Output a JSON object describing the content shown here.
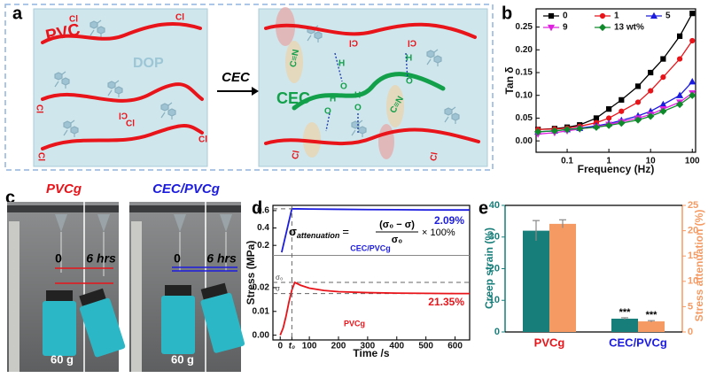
{
  "panel_labels": [
    "a",
    "b",
    "c",
    "d",
    "e"
  ],
  "schematic": {
    "left_polymer": "PVC",
    "plasticizer": "DOP",
    "left_chlorine": [
      "Cl",
      "Cl",
      "Cl",
      "Cl",
      "Cl",
      "Cl",
      "Cl"
    ],
    "arrow_label": "CEC",
    "right_polymer": "CEC",
    "nitrile": [
      "C≡N",
      "C≡N"
    ],
    "hydroxyl_o": [
      "O",
      "O",
      "O",
      "O"
    ],
    "hydroxyl_h": [
      "H",
      "H",
      "H",
      "H"
    ],
    "right_chlorine": [
      "Cl",
      "Cl",
      "Cl",
      "Cl"
    ]
  },
  "photos": {
    "left_title": "PVCg",
    "right_title": "CEC/PVCg",
    "start": "0",
    "end": "6 hrs",
    "load": "60 g"
  },
  "chart_data": [
    {
      "type": "line",
      "log_x": true,
      "x_label": "Frequency (Hz)",
      "y_label": "Tan δ",
      "legend": "top-left",
      "x": [
        0.02,
        0.05,
        0.1,
        0.2,
        0.5,
        1,
        2,
        5,
        10,
        20,
        50,
        100
      ],
      "xlim": [
        0.018,
        120
      ],
      "xticks": [
        0.1,
        1,
        10,
        100
      ],
      "ylim": [
        -0.025,
        0.29
      ],
      "yticks": [
        {
          "value": 0,
          "label": "0.00"
        },
        0.05,
        {
          "value": 0.1,
          "label": "0.10"
        },
        0.15,
        {
          "value": 0.2,
          "label": "0.20"
        },
        0.25
      ],
      "series": [
        {
          "name": "0",
          "color": "#000000",
          "marker": "square",
          "values": [
            0.025,
            0.027,
            0.03,
            0.035,
            0.05,
            0.07,
            0.09,
            0.12,
            0.15,
            0.18,
            0.23,
            0.28
          ]
        },
        {
          "name": "1",
          "color": "#e8141a",
          "marker": "circle",
          "values": [
            0.025,
            0.026,
            0.028,
            0.032,
            0.04,
            0.05,
            0.065,
            0.085,
            0.11,
            0.14,
            0.18,
            0.22
          ]
        },
        {
          "name": "5",
          "color": "#1c1ce0",
          "marker": "triangle-up",
          "values": [
            0.02,
            0.022,
            0.025,
            0.028,
            0.033,
            0.038,
            0.045,
            0.055,
            0.065,
            0.08,
            0.1,
            0.13
          ]
        },
        {
          "name": "9",
          "color": "#e020e0",
          "marker": "triangle-down",
          "values": [
            0.015,
            0.018,
            0.022,
            0.026,
            0.031,
            0.036,
            0.042,
            0.05,
            0.058,
            0.07,
            0.085,
            0.105
          ]
        },
        {
          "name": "13 wt%",
          "color": "#0f8a2a",
          "marker": "diamond",
          "values": [
            0.02,
            0.022,
            0.025,
            0.027,
            0.03,
            0.034,
            0.039,
            0.046,
            0.054,
            0.065,
            0.08,
            0.1
          ]
        }
      ]
    },
    {
      "type": "line",
      "y_label": "Stress (MPa)",
      "annotation": "2.09%",
      "formula": {
        "symbol": "σ",
        "subscript": "attenuation",
        "equals": "=",
        "numerator": "(σ₀ − σ)",
        "denominator": "σ₀",
        "factor": "× 100%"
      },
      "xlim": [
        -25,
        650
      ],
      "ylim": [
        0.1,
        0.66
      ],
      "yticks": [
        0.2,
        0.4,
        0.6
      ],
      "series": [
        {
          "name": "CEC/PVCg",
          "color": "#1c1ce0",
          "x": [
            5,
            40,
            60,
            100,
            200,
            300,
            400,
            500,
            600,
            650
          ],
          "values": [
            0.12,
            0.62,
            0.62,
            0.618,
            0.615,
            0.612,
            0.61,
            0.608,
            0.607,
            0.607
          ]
        }
      ]
    },
    {
      "type": "line",
      "x_label": "Time /s",
      "annotation": "21.35%",
      "xlim": [
        -25,
        650
      ],
      "xticks": [
        0,
        {
          "value": 40,
          "label": "t₀"
        },
        100,
        200,
        300,
        400,
        500,
        600
      ],
      "ylim": [
        -0.002,
        0.033
      ],
      "yticks": [
        {
          "value": 0,
          "label": "0.00"
        },
        0.01,
        0.02
      ],
      "reference_lines": [
        {
          "value": 0.0222,
          "label": "σ₀"
        },
        {
          "value": 0.0175,
          "label": "σ"
        }
      ],
      "series": [
        {
          "name": "PVCg",
          "color": "#e8141a",
          "x": [
            0,
            10,
            20,
            30,
            40,
            50,
            70,
            100,
            150,
            200,
            300,
            400,
            500,
            600,
            650
          ],
          "values": [
            0,
            0.003,
            0.008,
            0.014,
            0.019,
            0.0222,
            0.021,
            0.0198,
            0.0188,
            0.0183,
            0.0179,
            0.0177,
            0.0176,
            0.0175,
            0.0175
          ]
        }
      ]
    },
    {
      "type": "bar",
      "y_label": "Creep strain (%)",
      "y2_label": "Stress attenuation (%)",
      "categories": [
        "PVCg",
        "CEC/PVCg"
      ],
      "category_colors": [
        "#e8141a",
        "#1c1ce0"
      ],
      "ylim": [
        0,
        40
      ],
      "yticks": [
        0,
        10,
        20,
        30,
        40
      ],
      "y2lim": [
        0,
        25
      ],
      "y2ticks": [
        0,
        5,
        10,
        15,
        20,
        25
      ],
      "series": [
        {
          "color": "#177e7a",
          "values": [
            32,
            4.2
          ],
          "errors": [
            3.2,
            0.3
          ],
          "significance": [
            null,
            "***"
          ]
        },
        {
          "color": "#f59a62",
          "axis": "y2",
          "values": [
            21.35,
            2.09
          ],
          "errors": [
            0.8,
            0.15
          ],
          "significance": [
            null,
            "***"
          ]
        }
      ]
    }
  ]
}
